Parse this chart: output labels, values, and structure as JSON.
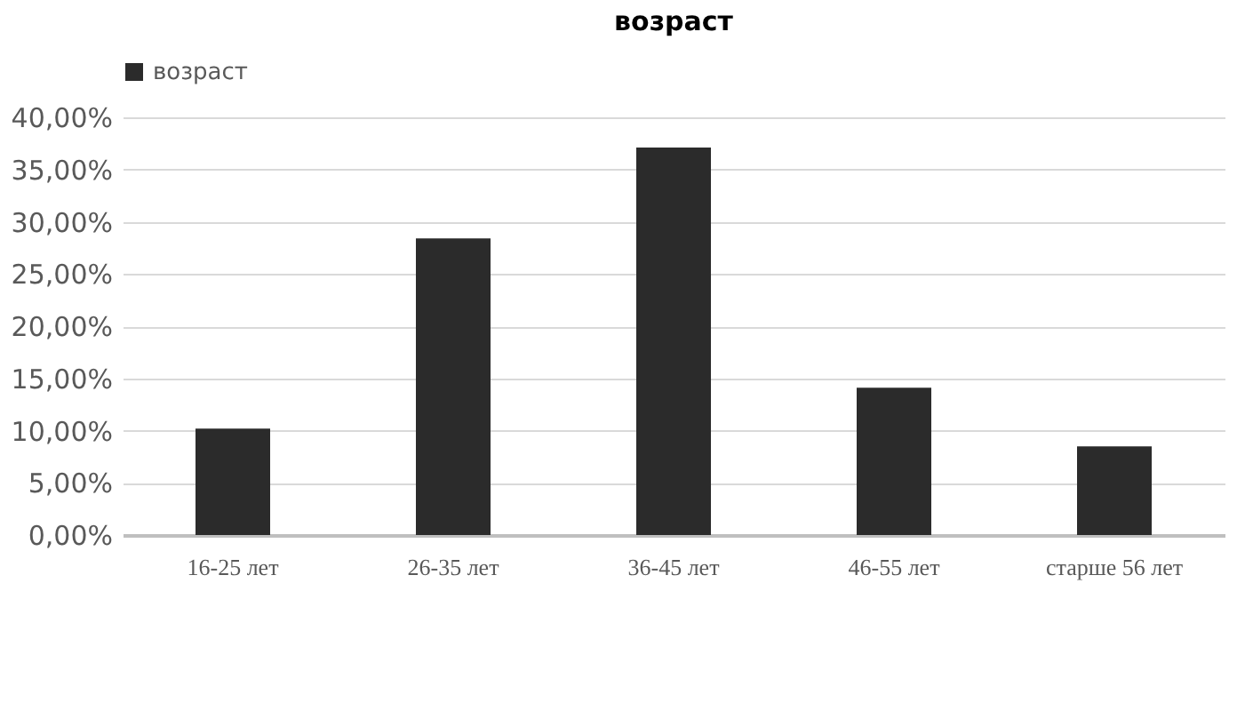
{
  "chart_data": {
    "type": "bar",
    "title": "возраст",
    "categories": [
      "16-25 лет",
      "26-35 лет",
      "36-45 лет",
      "46-55 лет",
      "старше 56 лет"
    ],
    "series": [
      {
        "name": "возраст",
        "color": "#2b2b2b",
        "values": [
          10.2,
          28.4,
          37.1,
          14.1,
          8.5
        ]
      }
    ],
    "ylim": [
      0,
      40
    ],
    "yticks": [
      {
        "value": 0,
        "label": "0,00%"
      },
      {
        "value": 5,
        "label": "5,00%"
      },
      {
        "value": 10,
        "label": "10,00%"
      },
      {
        "value": 15,
        "label": "15,00%"
      },
      {
        "value": 20,
        "label": "20,00%"
      },
      {
        "value": 25,
        "label": "25,00%"
      },
      {
        "value": 30,
        "label": "30,00%"
      },
      {
        "value": 35,
        "label": "35,00%"
      },
      {
        "value": 40,
        "label": "40,00%"
      }
    ],
    "grid": "y",
    "legend": "top"
  }
}
